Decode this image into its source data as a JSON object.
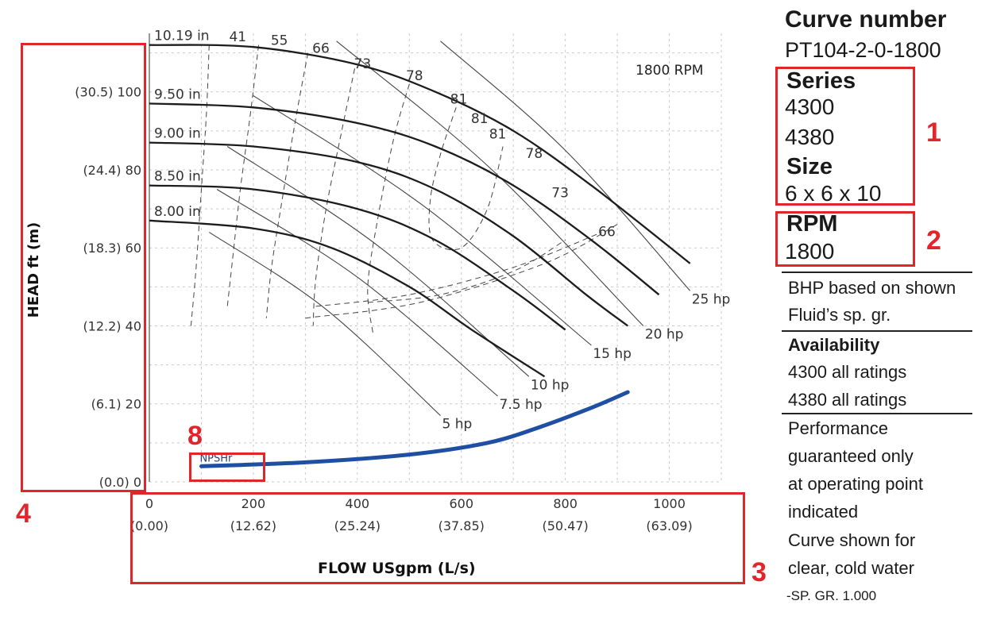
{
  "sidebar": {
    "curve_number_label": "Curve number",
    "curve_number": "PT104-2-0-1800",
    "series_label": "Series",
    "series_values": [
      "4300",
      "4380"
    ],
    "size_label": "Size",
    "size_value": "6 x 6 x 10",
    "rpm_label": "RPM",
    "rpm_value": "1800",
    "bhp_note": [
      "BHP based on shown",
      "Fluid’s sp. gr."
    ],
    "availability_label": "Availability",
    "availability": [
      "4300 all ratings",
      "4380 all ratings"
    ],
    "performance_note": [
      "Performance",
      "guaranteed only",
      "at operating point",
      "indicated",
      "Curve shown for",
      "clear, cold water"
    ],
    "sp_gr": "-SP. GR. 1.000"
  },
  "annotations": {
    "box_1": "1",
    "box_2": "2",
    "box_3": "3",
    "box_4": "4",
    "box_8": "8",
    "accent_color": "#e0262b"
  },
  "chart_data": {
    "type": "line",
    "speed_label": "1800 RPM",
    "xlabel": "FLOW USgpm (L/s)",
    "ylabel": "HEAD ft (m)",
    "xlim": [
      0,
      1100
    ],
    "ylim": [
      0,
      115
    ],
    "x_ticks": [
      {
        "value": 0,
        "label": "0",
        "sub": "(0.00)"
      },
      {
        "value": 200,
        "label": "200",
        "sub": "(12.62)"
      },
      {
        "value": 400,
        "label": "400",
        "sub": "(25.24)"
      },
      {
        "value": 600,
        "label": "600",
        "sub": "(37.85)"
      },
      {
        "value": 800,
        "label": "800",
        "sub": "(50.47)"
      },
      {
        "value": 1000,
        "label": "1000",
        "sub": "(63.09)"
      }
    ],
    "y_ticks": [
      {
        "value": 0,
        "label": "(0.0) 0"
      },
      {
        "value": 20,
        "label": "(6.1) 20"
      },
      {
        "value": 40,
        "label": "(12.2) 40"
      },
      {
        "value": 60,
        "label": "(18.3) 60"
      },
      {
        "value": 80,
        "label": "(24.4) 80"
      },
      {
        "value": 100,
        "label": "(30.5) 100"
      }
    ],
    "impeller_series": [
      {
        "name": "10.19 in",
        "points": [
          [
            0,
            112
          ],
          [
            200,
            111.5
          ],
          [
            400,
            107
          ],
          [
            550,
            100
          ],
          [
            700,
            90
          ],
          [
            850,
            76
          ],
          [
            1040,
            56
          ]
        ]
      },
      {
        "name": "9.50 in",
        "points": [
          [
            0,
            97
          ],
          [
            200,
            96
          ],
          [
            400,
            92
          ],
          [
            550,
            86
          ],
          [
            700,
            76
          ],
          [
            850,
            62
          ],
          [
            980,
            48
          ]
        ]
      },
      {
        "name": "9.00 in",
        "points": [
          [
            0,
            87
          ],
          [
            200,
            86
          ],
          [
            400,
            82
          ],
          [
            550,
            75
          ],
          [
            700,
            63
          ],
          [
            840,
            48
          ],
          [
            920,
            40
          ]
        ]
      },
      {
        "name": "8.50 in",
        "points": [
          [
            0,
            76
          ],
          [
            200,
            75
          ],
          [
            400,
            70
          ],
          [
            550,
            62
          ],
          [
            700,
            49
          ],
          [
            800,
            39
          ]
        ]
      },
      {
        "name": "8.00 in",
        "points": [
          [
            0,
            67
          ],
          [
            200,
            65
          ],
          [
            350,
            60
          ],
          [
            500,
            50
          ],
          [
            620,
            39
          ],
          [
            760,
            27
          ]
        ]
      }
    ],
    "efficiency_labels": [
      {
        "label": "41",
        "x": 170,
        "y": 113
      },
      {
        "label": "55",
        "x": 250,
        "y": 112
      },
      {
        "label": "66",
        "x": 330,
        "y": 110
      },
      {
        "label": "73",
        "x": 410,
        "y": 106
      },
      {
        "label": "78",
        "x": 510,
        "y": 103
      },
      {
        "label": "81",
        "x": 595,
        "y": 97
      },
      {
        "label": "81",
        "x": 635,
        "y": 92
      },
      {
        "label": "81",
        "x": 670,
        "y": 88
      },
      {
        "label": "78",
        "x": 740,
        "y": 83
      },
      {
        "label": "73",
        "x": 790,
        "y": 73
      },
      {
        "label": "66",
        "x": 880,
        "y": 63
      }
    ],
    "power_lines": [
      {
        "label": "5 hp",
        "points": [
          [
            115,
            64
          ],
          [
            560,
            17
          ]
        ]
      },
      {
        "label": "7.5 hp",
        "points": [
          [
            130,
            75
          ],
          [
            670,
            22
          ]
        ]
      },
      {
        "label": "10 hp",
        "points": [
          [
            150,
            86
          ],
          [
            730,
            27
          ]
        ]
      },
      {
        "label": "15 hp",
        "points": [
          [
            200,
            99
          ],
          [
            850,
            35
          ]
        ]
      },
      {
        "label": "20 hp",
        "points": [
          [
            360,
            113
          ],
          [
            950,
            40
          ]
        ]
      },
      {
        "label": "25 hp",
        "points": [
          [
            560,
            113
          ],
          [
            1040,
            49
          ]
        ]
      }
    ],
    "npshr": {
      "label": "NPSHr",
      "points": [
        [
          100,
          4
        ],
        [
          300,
          5
        ],
        [
          500,
          7
        ],
        [
          650,
          10
        ],
        [
          750,
          14
        ],
        [
          850,
          19
        ],
        [
          920,
          23
        ]
      ]
    }
  }
}
